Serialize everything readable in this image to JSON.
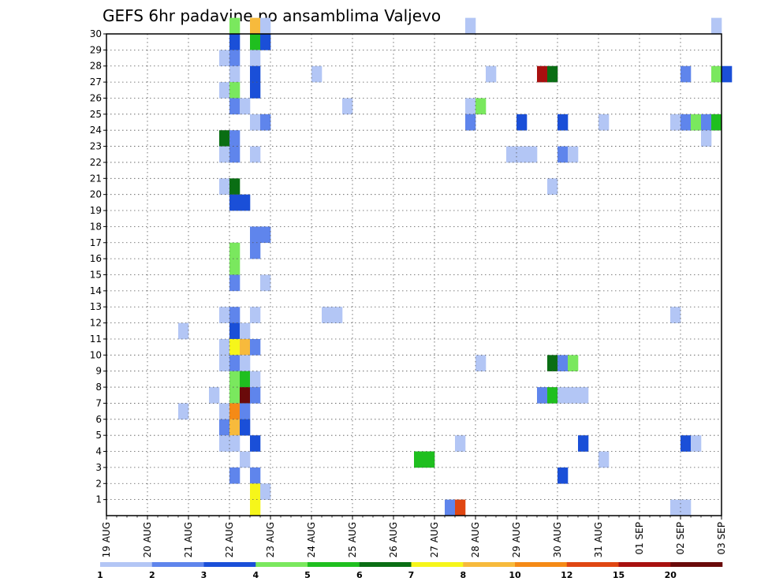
{
  "chart_data": {
    "type": "heatmap",
    "title": "GEFS 6hr padavine po ansamblima Valjevo",
    "xlabel": "",
    "ylabel": "",
    "x_tick_labels": [
      "19 AUG",
      "20 AUG",
      "21 AUG",
      "22 AUG",
      "23 AUG",
      "24 AUG",
      "25 AUG",
      "26 AUG",
      "27 AUG",
      "28 AUG",
      "29 AUG",
      "30 AUG",
      "31 AUG",
      "01 SEP",
      "02 SEP",
      "03 SEP"
    ],
    "y_tick_labels": [
      "1",
      "2",
      "3",
      "4",
      "5",
      "6",
      "7",
      "8",
      "9",
      "10",
      "11",
      "12",
      "13",
      "14",
      "15",
      "16",
      "17",
      "18",
      "19",
      "20",
      "21",
      "22",
      "23",
      "24",
      "25",
      "26",
      "27",
      "28",
      "29",
      "30"
    ],
    "x_range_days": [
      0,
      15
    ],
    "y_range": [
      0,
      30
    ],
    "step_hours": 6,
    "grid": true,
    "colorbar": {
      "labels": [
        "1",
        "2",
        "3",
        "4",
        "5",
        "6",
        "7",
        "8",
        "10",
        "12",
        "15",
        "20"
      ],
      "colors": [
        "#b3c6f5",
        "#5f85ec",
        "#1a4fd8",
        "#7ae85e",
        "#1fbf1f",
        "#0a6e14",
        "#f6f61a",
        "#f7ba3c",
        "#f58a16",
        "#e04612",
        "#a8100f",
        "#6a0a0a"
      ]
    },
    "cells": [
      {
        "d": 3.0,
        "m": 30,
        "c": 4
      },
      {
        "d": 3.5,
        "m": 30,
        "c": 8
      },
      {
        "d": 3.75,
        "m": 30,
        "c": 1
      },
      {
        "d": 8.75,
        "m": 30,
        "c": 1
      },
      {
        "d": 14.75,
        "m": 30,
        "c": 1
      },
      {
        "d": 3.0,
        "m": 29,
        "c": 3
      },
      {
        "d": 3.5,
        "m": 29,
        "c": 5
      },
      {
        "d": 3.75,
        "m": 29,
        "c": 3
      },
      {
        "d": 2.75,
        "m": 28,
        "c": 1
      },
      {
        "d": 3.0,
        "m": 28,
        "c": 2
      },
      {
        "d": 3.5,
        "m": 28,
        "c": 1
      },
      {
        "d": 3.0,
        "m": 27,
        "c": 1
      },
      {
        "d": 3.5,
        "m": 27,
        "c": 3
      },
      {
        "d": 5.0,
        "m": 27,
        "c": 1
      },
      {
        "d": 9.25,
        "m": 27,
        "c": 1
      },
      {
        "d": 10.5,
        "m": 27,
        "c": 11
      },
      {
        "d": 10.75,
        "m": 27,
        "c": 6
      },
      {
        "d": 14.0,
        "m": 27,
        "c": 2
      },
      {
        "d": 14.75,
        "m": 27,
        "c": 4
      },
      {
        "d": 15.0,
        "m": 27,
        "c": 3
      },
      {
        "d": 2.75,
        "m": 26,
        "c": 1
      },
      {
        "d": 3.0,
        "m": 26,
        "c": 4
      },
      {
        "d": 3.5,
        "m": 26,
        "c": 3
      },
      {
        "d": 3.0,
        "m": 25,
        "c": 2
      },
      {
        "d": 3.25,
        "m": 25,
        "c": 1
      },
      {
        "d": 5.75,
        "m": 25,
        "c": 1
      },
      {
        "d": 8.75,
        "m": 25,
        "c": 1
      },
      {
        "d": 9.0,
        "m": 25,
        "c": 4
      },
      {
        "d": 3.5,
        "m": 24,
        "c": 1
      },
      {
        "d": 3.75,
        "m": 24,
        "c": 2
      },
      {
        "d": 8.75,
        "m": 24,
        "c": 2
      },
      {
        "d": 10.0,
        "m": 24,
        "c": 3
      },
      {
        "d": 11.0,
        "m": 24,
        "c": 3
      },
      {
        "d": 12.0,
        "m": 24,
        "c": 1
      },
      {
        "d": 13.75,
        "m": 24,
        "c": 1
      },
      {
        "d": 14.0,
        "m": 24,
        "c": 2
      },
      {
        "d": 14.25,
        "m": 24,
        "c": 4
      },
      {
        "d": 14.5,
        "m": 24,
        "c": 2
      },
      {
        "d": 14.75,
        "m": 24,
        "c": 5
      },
      {
        "d": 2.75,
        "m": 23,
        "c": 6
      },
      {
        "d": 3.0,
        "m": 23,
        "c": 2
      },
      {
        "d": 14.5,
        "m": 23,
        "c": 1
      },
      {
        "d": 2.75,
        "m": 22,
        "c": 1
      },
      {
        "d": 3.0,
        "m": 22,
        "c": 2
      },
      {
        "d": 3.5,
        "m": 22,
        "c": 1
      },
      {
        "d": 9.75,
        "m": 22,
        "c": 1
      },
      {
        "d": 10.0,
        "m": 22,
        "c": 1
      },
      {
        "d": 10.25,
        "m": 22,
        "c": 1
      },
      {
        "d": 11.0,
        "m": 22,
        "c": 2
      },
      {
        "d": 11.25,
        "m": 22,
        "c": 1
      },
      {
        "d": 2.75,
        "m": 20,
        "c": 1
      },
      {
        "d": 3.0,
        "m": 20,
        "c": 6
      },
      {
        "d": 10.75,
        "m": 20,
        "c": 1
      },
      {
        "d": 3.0,
        "m": 19,
        "c": 3
      },
      {
        "d": 3.25,
        "m": 19,
        "c": 3
      },
      {
        "d": 3.5,
        "m": 17,
        "c": 2
      },
      {
        "d": 3.75,
        "m": 17,
        "c": 2
      },
      {
        "d": 3.5,
        "m": 16,
        "c": 2
      },
      {
        "d": 3.0,
        "m": 16,
        "c": 4
      },
      {
        "d": 3.0,
        "m": 15,
        "c": 4
      },
      {
        "d": 3.0,
        "m": 14,
        "c": 2
      },
      {
        "d": 3.75,
        "m": 14,
        "c": 1
      },
      {
        "d": 2.75,
        "m": 12,
        "c": 1
      },
      {
        "d": 3.0,
        "m": 12,
        "c": 2
      },
      {
        "d": 3.5,
        "m": 12,
        "c": 1
      },
      {
        "d": 5.25,
        "m": 12,
        "c": 1
      },
      {
        "d": 5.5,
        "m": 12,
        "c": 1
      },
      {
        "d": 13.75,
        "m": 12,
        "c": 1
      },
      {
        "d": 1.75,
        "m": 11,
        "c": 1
      },
      {
        "d": 3.0,
        "m": 11,
        "c": 3
      },
      {
        "d": 3.25,
        "m": 11,
        "c": 1
      },
      {
        "d": 2.75,
        "m": 10,
        "c": 1
      },
      {
        "d": 3.0,
        "m": 10,
        "c": 7
      },
      {
        "d": 3.25,
        "m": 10,
        "c": 8
      },
      {
        "d": 3.5,
        "m": 10,
        "c": 2
      },
      {
        "d": 2.75,
        "m": 9,
        "c": 1
      },
      {
        "d": 3.0,
        "m": 9,
        "c": 2
      },
      {
        "d": 3.25,
        "m": 9,
        "c": 1
      },
      {
        "d": 9.0,
        "m": 9,
        "c": 1
      },
      {
        "d": 10.75,
        "m": 9,
        "c": 6
      },
      {
        "d": 11.0,
        "m": 9,
        "c": 2
      },
      {
        "d": 11.25,
        "m": 9,
        "c": 4
      },
      {
        "d": 3.0,
        "m": 8,
        "c": 4
      },
      {
        "d": 3.25,
        "m": 8,
        "c": 5
      },
      {
        "d": 3.5,
        "m": 8,
        "c": 1
      },
      {
        "d": 2.5,
        "m": 7,
        "c": 1
      },
      {
        "d": 3.0,
        "m": 7,
        "c": 4
      },
      {
        "d": 3.25,
        "m": 7,
        "c": 12
      },
      {
        "d": 3.5,
        "m": 7,
        "c": 2
      },
      {
        "d": 10.5,
        "m": 7,
        "c": 2
      },
      {
        "d": 10.75,
        "m": 7,
        "c": 5
      },
      {
        "d": 11.0,
        "m": 7,
        "c": 1
      },
      {
        "d": 11.25,
        "m": 7,
        "c": 1
      },
      {
        "d": 11.5,
        "m": 7,
        "c": 1
      },
      {
        "d": 1.75,
        "m": 6,
        "c": 1
      },
      {
        "d": 2.75,
        "m": 6,
        "c": 1
      },
      {
        "d": 3.0,
        "m": 6,
        "c": 9
      },
      {
        "d": 3.25,
        "m": 6,
        "c": 2
      },
      {
        "d": 2.75,
        "m": 5,
        "c": 2
      },
      {
        "d": 3.0,
        "m": 5,
        "c": 8
      },
      {
        "d": 3.25,
        "m": 5,
        "c": 3
      },
      {
        "d": 2.75,
        "m": 4,
        "c": 1
      },
      {
        "d": 3.0,
        "m": 4,
        "c": 1
      },
      {
        "d": 3.5,
        "m": 4,
        "c": 3
      },
      {
        "d": 8.5,
        "m": 4,
        "c": 1
      },
      {
        "d": 11.5,
        "m": 4,
        "c": 3
      },
      {
        "d": 14.0,
        "m": 4,
        "c": 3
      },
      {
        "d": 14.25,
        "m": 4,
        "c": 1
      },
      {
        "d": 3.25,
        "m": 3,
        "c": 1
      },
      {
        "d": 7.5,
        "m": 3,
        "c": 5
      },
      {
        "d": 7.75,
        "m": 3,
        "c": 5
      },
      {
        "d": 12.0,
        "m": 3,
        "c": 1
      },
      {
        "d": 3.0,
        "m": 2,
        "c": 2
      },
      {
        "d": 3.5,
        "m": 2,
        "c": 2
      },
      {
        "d": 11.0,
        "m": 2,
        "c": 3
      },
      {
        "d": 3.5,
        "m": 1,
        "c": 7
      },
      {
        "d": 3.75,
        "m": 1,
        "c": 1
      },
      {
        "d": 3.5,
        "m": 0,
        "c": 7
      },
      {
        "d": 8.25,
        "m": 0,
        "c": 2
      },
      {
        "d": 8.5,
        "m": 0,
        "c": 10
      },
      {
        "d": 13.75,
        "m": 0,
        "c": 1
      },
      {
        "d": 14.0,
        "m": 0,
        "c": 1
      }
    ]
  }
}
